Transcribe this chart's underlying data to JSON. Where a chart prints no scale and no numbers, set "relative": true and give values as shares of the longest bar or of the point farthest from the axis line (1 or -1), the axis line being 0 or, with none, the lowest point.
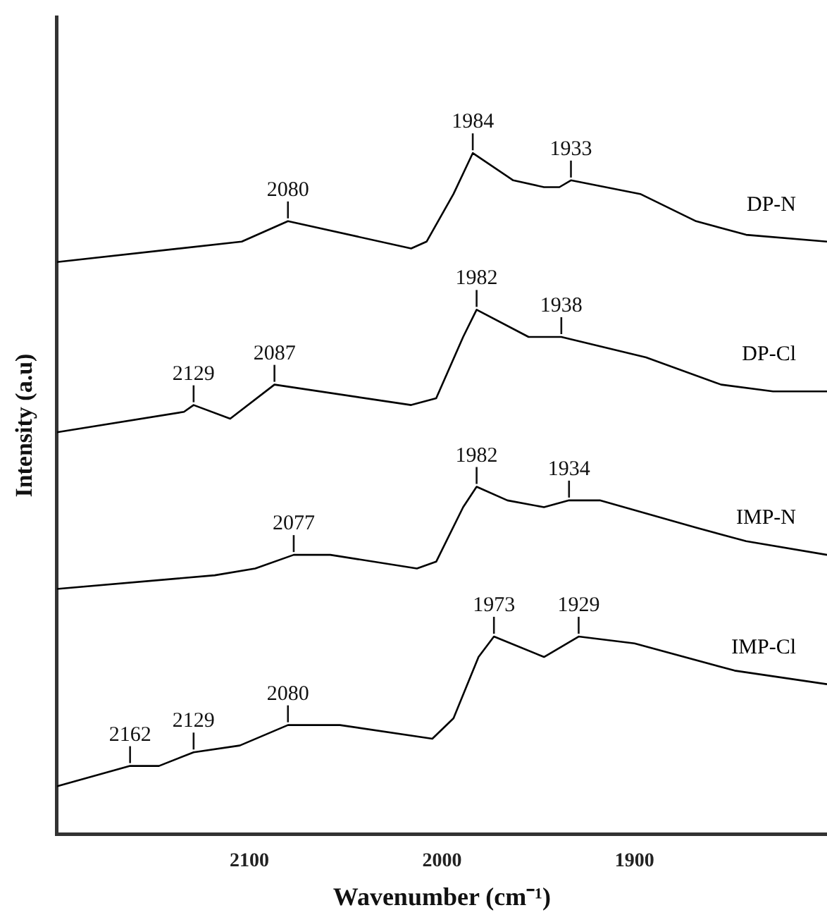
{
  "chart_data": {
    "type": "line",
    "xlabel": "Wavenumber (cm⁻¹)",
    "ylabel": "Intensity (a.u)",
    "relative": true,
    "xlim": [
      2200,
      1800
    ],
    "xticks": [
      2100,
      2000,
      1900
    ],
    "grid": false,
    "legend": false,
    "series": [
      {
        "name": "DP-N",
        "color": "#000000",
        "x": [
          2200,
          2104,
          2080,
          2016,
          2008,
          1994,
          1984,
          1963,
          1947,
          1939,
          1933,
          1897,
          1868,
          1842,
          1800
        ],
        "values": [
          0.84,
          0.87,
          0.9,
          0.86,
          0.87,
          0.94,
          1,
          0.96,
          0.95,
          0.95,
          0.96,
          0.94,
          0.9,
          0.88,
          0.87
        ]
      },
      {
        "name": "DP-Cl",
        "color": "#000000",
        "x": [
          2200,
          2134,
          2129,
          2110,
          2087,
          2016,
          2003,
          1989,
          1982,
          1955,
          1947,
          1938,
          1894,
          1855,
          1828,
          1800
        ],
        "values": [
          0.59,
          0.62,
          0.63,
          0.61,
          0.66,
          0.63,
          0.64,
          0.73,
          0.77,
          0.73,
          0.73,
          0.73,
          0.7,
          0.66,
          0.65,
          0.65
        ]
      },
      {
        "name": "IMP-N",
        "color": "#000000",
        "x": [
          2200,
          2118,
          2097,
          2077,
          2058,
          2013,
          2003,
          1989,
          1982,
          1966,
          1947,
          1934,
          1918,
          1868,
          1842,
          1800
        ],
        "values": [
          0.36,
          0.38,
          0.39,
          0.41,
          0.41,
          0.39,
          0.4,
          0.48,
          0.51,
          0.49,
          0.48,
          0.49,
          0.49,
          0.45,
          0.43,
          0.41
        ]
      },
      {
        "name": "IMP-Cl",
        "color": "#000000",
        "x": [
          2200,
          2162,
          2147,
          2129,
          2105,
          2080,
          2053,
          2005,
          1994,
          1981,
          1973,
          1947,
          1929,
          1900,
          1848,
          1800
        ],
        "values": [
          0.07,
          0.1,
          0.1,
          0.12,
          0.13,
          0.16,
          0.16,
          0.14,
          0.17,
          0.26,
          0.29,
          0.26,
          0.29,
          0.28,
          0.24,
          0.22
        ]
      }
    ],
    "annotations": [
      {
        "text": "2080",
        "x": 2080,
        "y": 0.9
      },
      {
        "text": "1984",
        "x": 1984,
        "y": 1
      },
      {
        "text": "1933",
        "x": 1933,
        "y": 0.96
      },
      {
        "text": "2129",
        "x": 2129,
        "y": 0.63
      },
      {
        "text": "2087",
        "x": 2087,
        "y": 0.66
      },
      {
        "text": "1982",
        "x": 1982,
        "y": 0.77
      },
      {
        "text": "1938",
        "x": 1938,
        "y": 0.73
      },
      {
        "text": "2077",
        "x": 2077,
        "y": 0.41
      },
      {
        "text": "1982",
        "x": 1982,
        "y": 0.51
      },
      {
        "text": "1934",
        "x": 1934,
        "y": 0.49
      },
      {
        "text": "2162",
        "x": 2162,
        "y": 0.1
      },
      {
        "text": "2129",
        "x": 2129,
        "y": 0.12
      },
      {
        "text": "2080",
        "x": 2080,
        "y": 0.16
      },
      {
        "text": "1973",
        "x": 1973,
        "y": 0.29
      },
      {
        "text": "1929",
        "x": 1929,
        "y": 0.29
      }
    ]
  }
}
